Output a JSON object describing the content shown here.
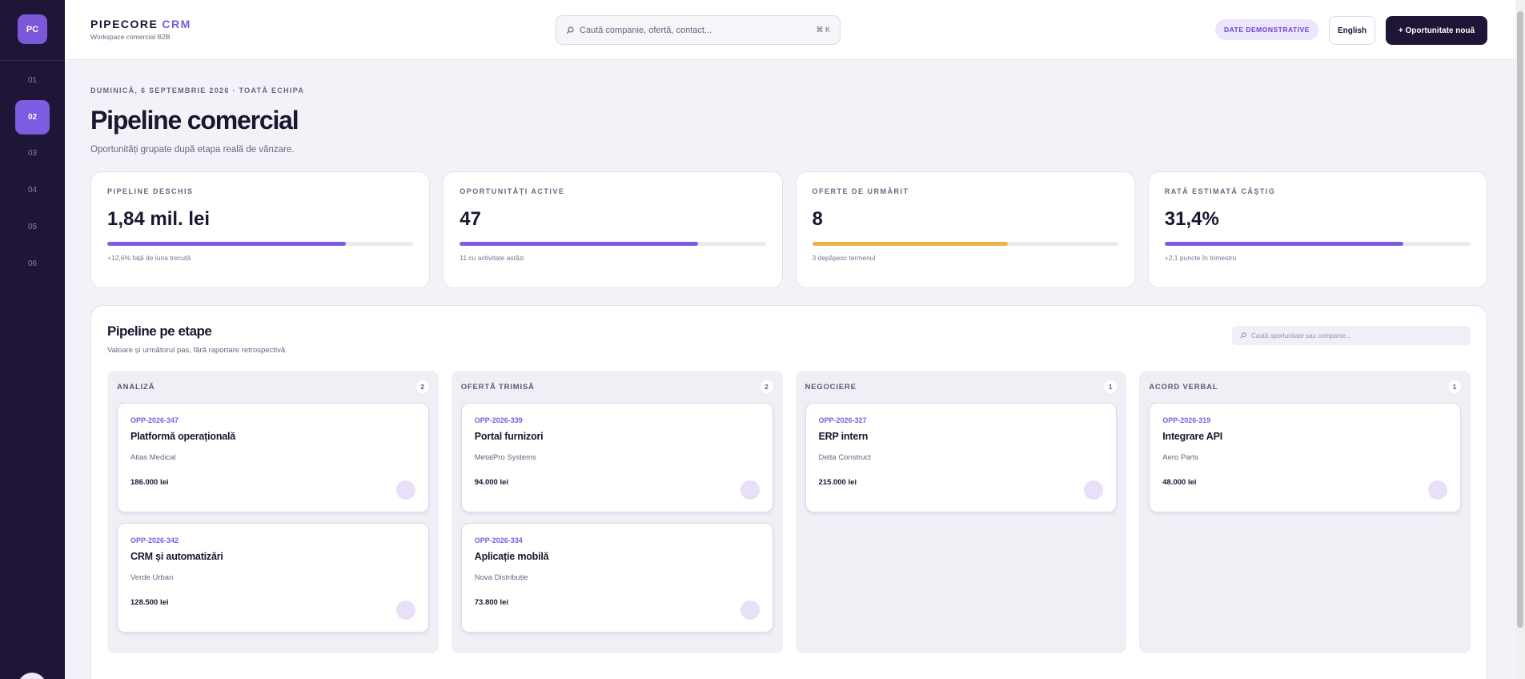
{
  "brand": {
    "logo": "PC",
    "name": "PIPECORE",
    "accent": "CRM",
    "tagline": "Workspace comercial B2B"
  },
  "nav": {
    "items": [
      "01",
      "02",
      "03",
      "04",
      "05",
      "06"
    ],
    "active": 1
  },
  "header": {
    "search_placeholder": "Caută companie, ofertă, contact...",
    "shortcut": "⌘ K",
    "badge": "DATE DEMONSTRATIVE",
    "language": "English",
    "cta": "+ Oportunitate nouă"
  },
  "page": {
    "eyebrow": "DUMINICĂ, 6 SEPTEMBRIE 2026 · TOATĂ ECHIPA",
    "title": "Pipeline comercial",
    "subtitle": "Oportunități grupate după etapa reală de vânzare."
  },
  "kpis": [
    {
      "label": "PIPELINE DESCHIS",
      "value": "1,84 mil. lei",
      "note": "+12,6% față de luna trecută",
      "progress": 78,
      "color": "#7c5ce0"
    },
    {
      "label": "OPORTUNITĂȚI ACTIVE",
      "value": "47",
      "note": "11 cu activitate astăzi",
      "progress": 78,
      "color": "#7c5ce0"
    },
    {
      "label": "OFERTE DE URMĂRIT",
      "value": "8",
      "note": "3 depășesc termenul",
      "progress": 64,
      "color": "#f0b04a"
    },
    {
      "label": "RATĂ ESTIMATĂ CÂȘTIG",
      "value": "31,4%",
      "note": "+2,1 puncte în trimestru",
      "progress": 78,
      "color": "#7c5ce0"
    }
  ],
  "board": {
    "title": "Pipeline pe etape",
    "subtitle": "Valoare și următorul pas, fără raportare retrospectivă.",
    "filter_placeholder": "Caută oportunitate sau companie...",
    "columns": [
      {
        "name": "ANALIZĂ",
        "count": 2,
        "cards": [
          {
            "id": "OPP-2026-347",
            "title": "Platformă operațională",
            "company": "Atlas Medical",
            "value": "186.000 lei"
          },
          {
            "id": "OPP-2026-342",
            "title": "CRM și automatizări",
            "company": "Verde Urban",
            "value": "128.500 lei"
          }
        ]
      },
      {
        "name": "OFERTĂ TRIMISĂ",
        "count": 2,
        "cards": [
          {
            "id": "OPP-2026-339",
            "title": "Portal furnizori",
            "company": "MetalPro Systems",
            "value": "94.000 lei"
          },
          {
            "id": "OPP-2026-334",
            "title": "Aplicație mobilă",
            "company": "Nova Distribuție",
            "value": "73.800 lei"
          }
        ]
      },
      {
        "name": "NEGOCIERE",
        "count": 1,
        "cards": [
          {
            "id": "OPP-2026-327",
            "title": "ERP intern",
            "company": "Delta Construct",
            "value": "215.000 lei"
          }
        ]
      },
      {
        "name": "ACORD VERBAL",
        "count": 1,
        "cards": [
          {
            "id": "OPP-2026-319",
            "title": "Integrare API",
            "company": "Aero Parts",
            "value": "48.000 lei"
          }
        ]
      }
    ]
  }
}
